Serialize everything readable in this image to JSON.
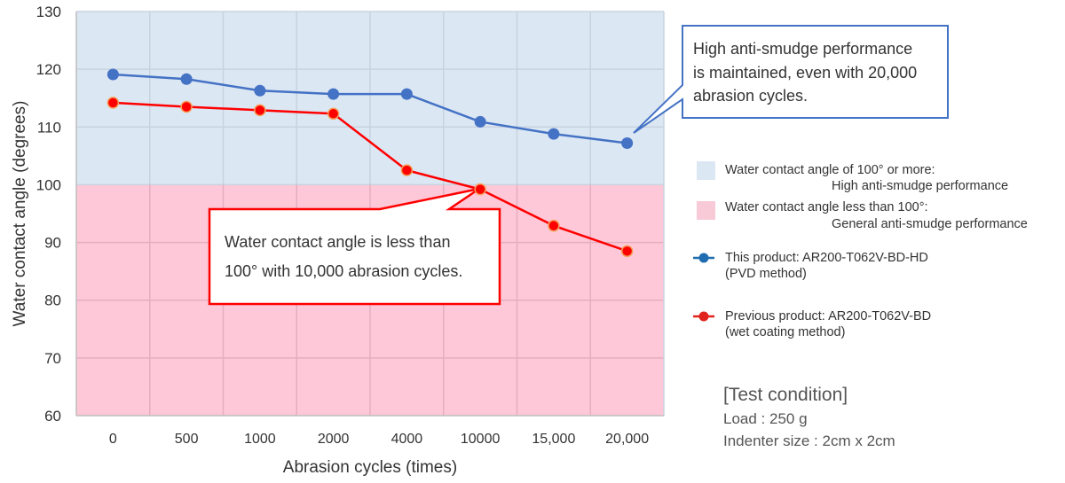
{
  "chart_data": {
    "type": "line",
    "title": "",
    "xlabel": "Abrasion cycles (times)",
    "ylabel": "Water contact angle (degrees)",
    "ylim": [
      60,
      130
    ],
    "yticks": [
      "60",
      "70",
      "80",
      "90",
      "100",
      "110",
      "120",
      "130"
    ],
    "categories": [
      "0",
      "500",
      "1000",
      "2000",
      "4000",
      "10000",
      "15,000",
      "20,000"
    ],
    "grid": true,
    "threshold": 100,
    "series": [
      {
        "name": "This product: AR200-T062V-BD-HD",
        "name_line2": "(PVD method)",
        "color": "#4472C4",
        "values": [
          119.1,
          118.3,
          116.3,
          115.7,
          115.7,
          110.9,
          108.8,
          107.2
        ]
      },
      {
        "name": "Previous product: AR200-T062V-BD",
        "name_line2": "(wet coating method)",
        "color": "#FF0000",
        "values": [
          114.2,
          113.5,
          112.9,
          112.3,
          102.5,
          99.2,
          92.9,
          88.5
        ]
      }
    ],
    "bands": [
      {
        "label_line1": "Water contact angle of 100° or more:",
        "label_line2": "High anti-smudge performance",
        "color": "#DCE7F4",
        "range": [
          100,
          130
        ]
      },
      {
        "label_line1": "Water contact angle less than 100°:",
        "label_line2": "General anti-smudge performance",
        "color": "#FEC8D8",
        "range": [
          60,
          100
        ]
      }
    ],
    "annotations": [
      {
        "target": "This product at 20,000",
        "lines": [
          "High anti-smudge performance",
          "is maintained, even with 20,000",
          "abrasion cycles."
        ],
        "border_color": "#4472C4"
      },
      {
        "target": "Previous product at 10000",
        "lines": [
          "Water contact angle is less than",
          "100° with 10,000 abrasion cycles."
        ],
        "border_color": "#FF0000"
      }
    ],
    "legend_position": "right"
  },
  "test_condition": {
    "title": "[Test condition]",
    "load": "Load : 250 g",
    "indenter": "Indenter size : 2cm x 2cm"
  }
}
